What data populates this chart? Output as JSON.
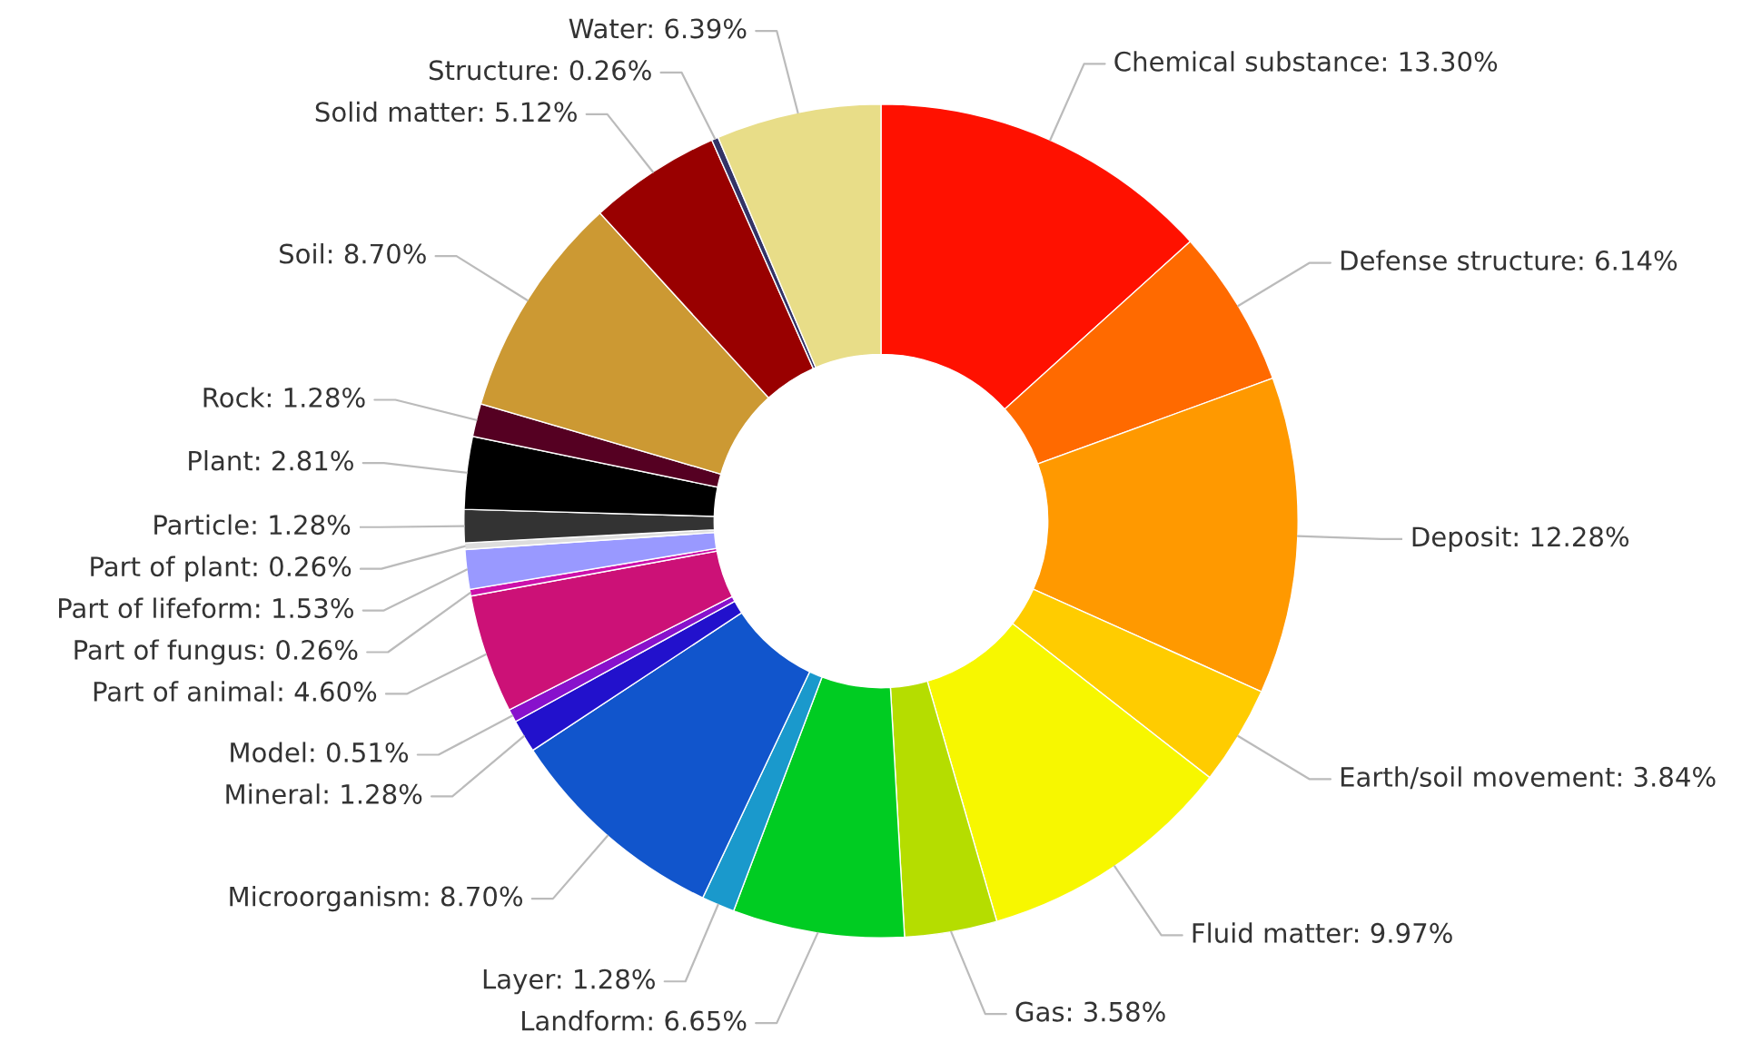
{
  "chart_data": {
    "type": "donut",
    "categories": [
      "Chemical substance",
      "Defense structure",
      "Deposit",
      "Earth/soil movement",
      "Fluid matter",
      "Gas",
      "Landform",
      "Layer",
      "Microorganism",
      "Mineral",
      "Model",
      "Part of animal",
      "Part of fungus",
      "Part of lifeform",
      "Part of plant",
      "Particle",
      "Plant",
      "Rock",
      "Soil",
      "Solid matter",
      "Structure",
      "Water"
    ],
    "values": [
      13.3,
      6.14,
      12.28,
      3.84,
      9.97,
      3.58,
      6.65,
      1.28,
      8.7,
      1.28,
      0.51,
      4.6,
      0.26,
      1.53,
      0.26,
      1.28,
      2.81,
      1.28,
      8.7,
      5.12,
      0.26,
      6.39
    ],
    "colors": [
      "#ff1100",
      "#ff6a00",
      "#ff9900",
      "#ffcc00",
      "#f7f700",
      "#b5dd00",
      "#00cc22",
      "#1a99cc",
      "#1155cc",
      "#2211cc",
      "#8811cc",
      "#cc1177",
      "#cc11aa",
      "#9999ff",
      "#dddddd",
      "#333333",
      "#000000",
      "#550022",
      "#cc9933",
      "#990000",
      "#333366",
      "#e8dd88"
    ],
    "value_labels": [
      "13.30%",
      "6.14%",
      "12.28%",
      "3.84%",
      "9.97%",
      "3.58%",
      "6.65%",
      "1.28%",
      "8.70%",
      "1.28%",
      "0.51%",
      "4.60%",
      "0.26%",
      "1.53%",
      "0.26%",
      "1.28%",
      "2.81%",
      "1.28%",
      "8.70%",
      "5.12%",
      "0.26%",
      "6.39%"
    ]
  }
}
